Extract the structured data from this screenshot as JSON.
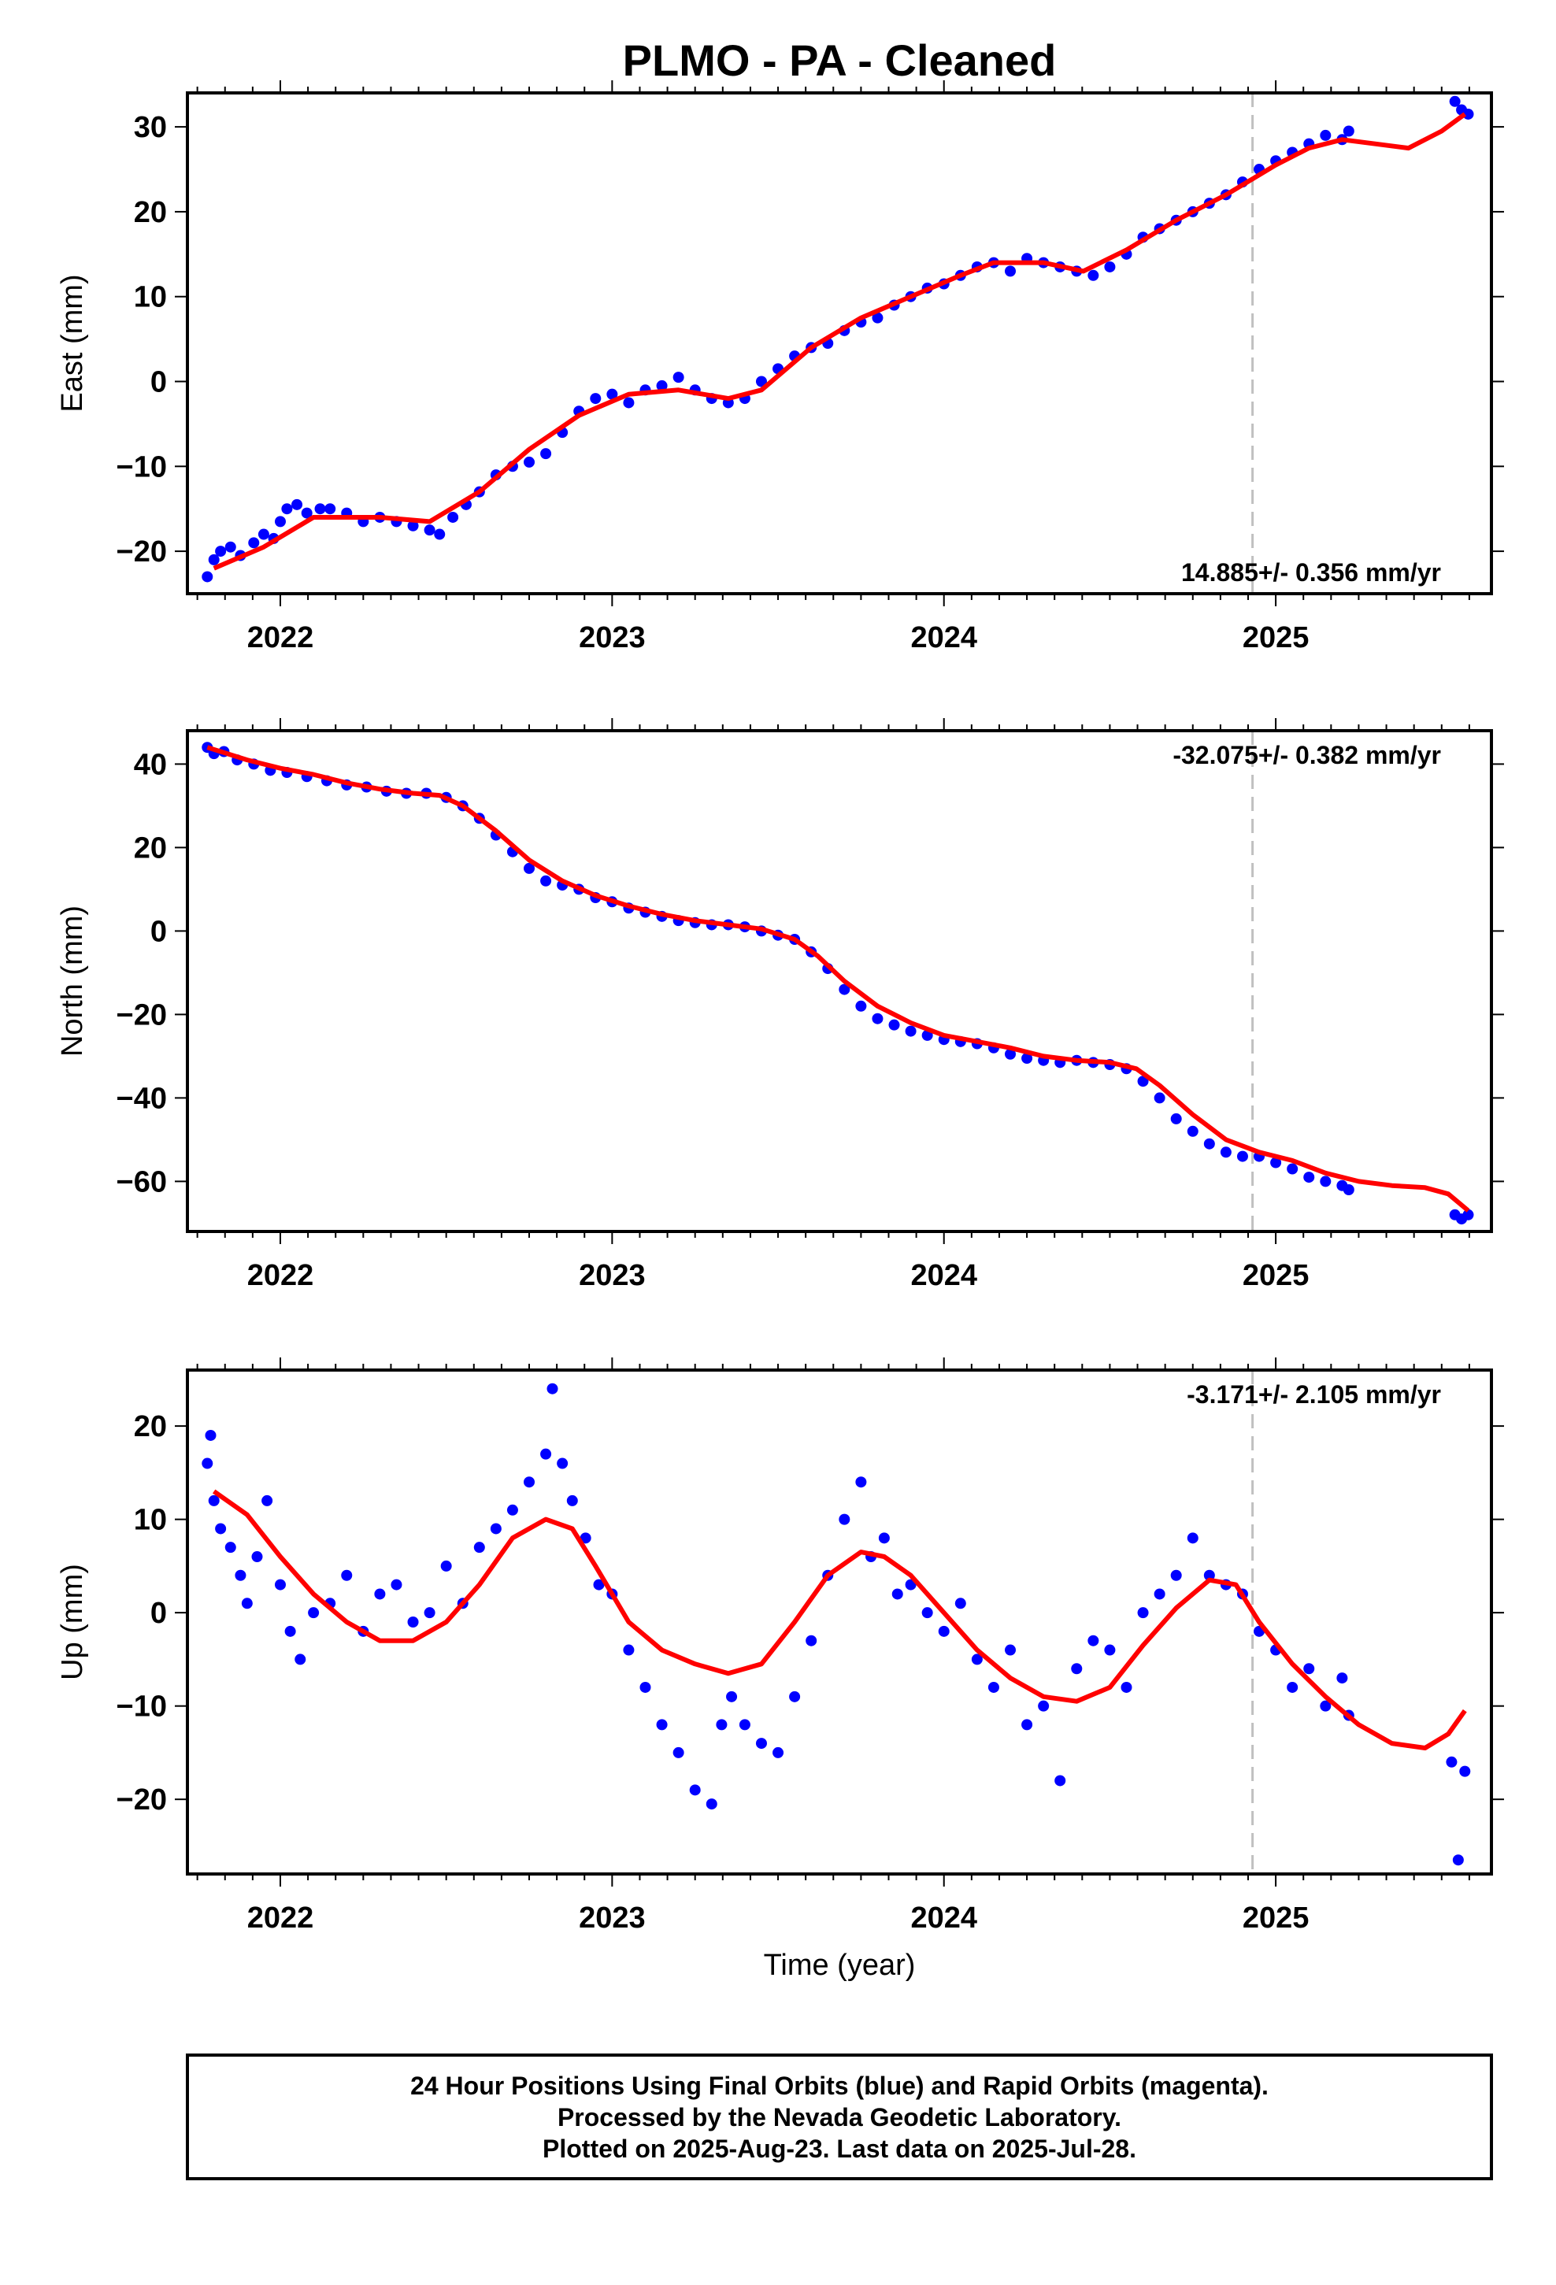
{
  "title": "PLMO  - PA - Cleaned",
  "xlabel": "Time (year)",
  "footer": {
    "line1": "24 Hour Positions Using Final Orbits (blue) and Rapid Orbits (magenta).",
    "line2": "Processed by the Nevada Geodetic Laboratory.",
    "line3": "Plotted on 2025-Aug-23. Last data on 2025-Jul-28."
  },
  "colors": {
    "points": "#0000ff",
    "model": "#ff0000",
    "break_line": "#c0c0c0",
    "frame": "#000000"
  },
  "chart_data": [
    {
      "type": "scatter",
      "title": "PLMO  - PA - Cleaned",
      "xlabel": "",
      "ylabel": "East (mm)",
      "xlim": [
        2021.72,
        2025.65
      ],
      "ylim": [
        -25,
        34
      ],
      "xticks": [
        2022,
        2023,
        2024,
        2025
      ],
      "yticks": [
        -20,
        -10,
        0,
        10,
        20,
        30
      ],
      "grid": false,
      "rate_text": "14.885+/- 0.356 mm/yr",
      "rate_position": "bottom-right",
      "break_line_x": 2024.93,
      "model_line": {
        "x": [
          2021.8,
          2021.95,
          2022.1,
          2022.3,
          2022.45,
          2022.6,
          2022.75,
          2022.9,
          2023.05,
          2023.2,
          2023.35,
          2023.45,
          2023.6,
          2023.75,
          2023.9,
          2024.05,
          2024.15,
          2024.3,
          2024.42,
          2024.55,
          2024.7,
          2024.85,
          2025.0,
          2025.1,
          2025.2,
          2025.3,
          2025.4,
          2025.5,
          2025.57
        ],
        "y": [
          -22,
          -19.5,
          -16,
          -16,
          -16.5,
          -13,
          -8,
          -4,
          -1.5,
          -1,
          -2,
          -1,
          4,
          7.5,
          10,
          12.5,
          14,
          14,
          13,
          15.5,
          19,
          22,
          25.5,
          27.5,
          28.5,
          28,
          27.5,
          29.5,
          31.5
        ]
      },
      "points": {
        "x": [
          2021.78,
          2021.8,
          2021.82,
          2021.85,
          2021.88,
          2021.92,
          2021.95,
          2021.98,
          2022.0,
          2022.02,
          2022.05,
          2022.08,
          2022.12,
          2022.15,
          2022.2,
          2022.25,
          2022.3,
          2022.35,
          2022.4,
          2022.45,
          2022.48,
          2022.52,
          2022.56,
          2022.6,
          2022.65,
          2022.7,
          2022.75,
          2022.8,
          2022.85,
          2022.9,
          2022.95,
          2023.0,
          2023.05,
          2023.1,
          2023.15,
          2023.2,
          2023.25,
          2023.3,
          2023.35,
          2023.4,
          2023.45,
          2023.5,
          2023.55,
          2023.6,
          2023.65,
          2023.7,
          2023.75,
          2023.8,
          2023.85,
          2023.9,
          2023.95,
          2024.0,
          2024.05,
          2024.1,
          2024.15,
          2024.2,
          2024.25,
          2024.3,
          2024.35,
          2024.4,
          2024.45,
          2024.5,
          2024.55,
          2024.6,
          2024.65,
          2024.7,
          2024.75,
          2024.8,
          2024.85,
          2024.9,
          2024.95,
          2025.0,
          2025.05,
          2025.1,
          2025.15,
          2025.2,
          2025.22,
          2025.54,
          2025.56,
          2025.58
        ],
        "y": [
          -23,
          -21,
          -20,
          -19.5,
          -20.5,
          -19,
          -18,
          -18.5,
          -16.5,
          -15,
          -14.5,
          -15.5,
          -15,
          -15,
          -15.5,
          -16.5,
          -16,
          -16.5,
          -17,
          -17.5,
          -18,
          -16,
          -14.5,
          -13,
          -11,
          -10,
          -9.5,
          -8.5,
          -6,
          -3.5,
          -2,
          -1.5,
          -2.5,
          -1,
          -0.5,
          0.5,
          -1,
          -2,
          -2.5,
          -2,
          0,
          1.5,
          3,
          4,
          4.5,
          6,
          7,
          7.5,
          9,
          10,
          11,
          11.5,
          12.5,
          13.5,
          14,
          13,
          14.5,
          14,
          13.5,
          13,
          12.5,
          13.5,
          15,
          17,
          18,
          19,
          20,
          21,
          22,
          23.5,
          25,
          26,
          27,
          28,
          29,
          28.5,
          29.5,
          33,
          32,
          31.5
        ]
      }
    },
    {
      "type": "scatter",
      "xlabel": "",
      "ylabel": "North (mm)",
      "xlim": [
        2021.72,
        2025.65
      ],
      "ylim": [
        -72,
        48
      ],
      "xticks": [
        2022,
        2023,
        2024,
        2025
      ],
      "yticks": [
        -60,
        -40,
        -20,
        0,
        20,
        40
      ],
      "grid": false,
      "rate_text": "-32.075+/- 0.382 mm/yr",
      "rate_position": "top-right",
      "break_line_x": 2024.93,
      "model_line": {
        "x": [
          2021.78,
          2021.9,
          2022.0,
          2022.1,
          2022.2,
          2022.3,
          2022.4,
          2022.48,
          2022.55,
          2022.65,
          2022.75,
          2022.85,
          2022.95,
          2023.05,
          2023.15,
          2023.25,
          2023.35,
          2023.45,
          2023.55,
          2023.62,
          2023.7,
          2023.8,
          2023.9,
          2024.0,
          2024.1,
          2024.2,
          2024.3,
          2024.4,
          2024.5,
          2024.58,
          2024.65,
          2024.75,
          2024.85,
          2024.95,
          2025.05,
          2025.15,
          2025.25,
          2025.35,
          2025.45,
          2025.52,
          2025.58
        ],
        "y": [
          44,
          41,
          39,
          37.5,
          35.5,
          34,
          33,
          32.5,
          30,
          24,
          17,
          12,
          8.5,
          6,
          4,
          2.5,
          1.5,
          0.5,
          -2,
          -6,
          -12,
          -18,
          -22,
          -25,
          -26.5,
          -28,
          -30,
          -31,
          -31.5,
          -33,
          -37,
          -44,
          -50,
          -53,
          -55,
          -58,
          -60,
          -61,
          -61.5,
          -63,
          -67
        ]
      },
      "points": {
        "x": [
          2021.78,
          2021.8,
          2021.83,
          2021.87,
          2021.92,
          2021.97,
          2022.02,
          2022.08,
          2022.14,
          2022.2,
          2022.26,
          2022.32,
          2022.38,
          2022.44,
          2022.5,
          2022.55,
          2022.6,
          2022.65,
          2022.7,
          2022.75,
          2022.8,
          2022.85,
          2022.9,
          2022.95,
          2023.0,
          2023.05,
          2023.1,
          2023.15,
          2023.2,
          2023.25,
          2023.3,
          2023.35,
          2023.4,
          2023.45,
          2023.5,
          2023.55,
          2023.6,
          2023.65,
          2023.7,
          2023.75,
          2023.8,
          2023.85,
          2023.9,
          2023.95,
          2024.0,
          2024.05,
          2024.1,
          2024.15,
          2024.2,
          2024.25,
          2024.3,
          2024.35,
          2024.4,
          2024.45,
          2024.5,
          2024.55,
          2024.6,
          2024.65,
          2024.7,
          2024.75,
          2024.8,
          2024.85,
          2024.9,
          2024.95,
          2025.0,
          2025.05,
          2025.1,
          2025.15,
          2025.2,
          2025.22,
          2025.54,
          2025.56,
          2025.58
        ],
        "y": [
          44,
          42.5,
          43,
          41,
          40,
          38.5,
          38,
          37,
          36,
          35,
          34.5,
          33.5,
          33,
          33,
          32,
          30,
          27,
          23,
          19,
          15,
          12,
          11,
          10,
          8,
          7,
          5.5,
          4.5,
          3.5,
          2.5,
          2,
          1.5,
          1.5,
          1,
          0,
          -1,
          -2,
          -5,
          -9,
          -14,
          -18,
          -21,
          -22.5,
          -24,
          -25,
          -26,
          -26.5,
          -27,
          -28,
          -29.5,
          -30.5,
          -31,
          -31.5,
          -31,
          -31.5,
          -32,
          -33,
          -36,
          -40,
          -45,
          -48,
          -51,
          -53,
          -54,
          -54,
          -55.5,
          -57,
          -59,
          -60,
          -61,
          -62,
          -68,
          -69,
          -68
        ]
      }
    },
    {
      "type": "scatter",
      "xlabel": "Time (year)",
      "ylabel": "Up (mm)",
      "xlim": [
        2021.72,
        2025.65
      ],
      "ylim": [
        -28,
        26
      ],
      "xticks": [
        2022,
        2023,
        2024,
        2025
      ],
      "yticks": [
        -20,
        -10,
        0,
        10,
        20
      ],
      "grid": false,
      "rate_text": "-3.171+/- 2.105 mm/yr",
      "rate_position": "top-right",
      "break_line_x": 2024.93,
      "model_line": {
        "x": [
          2021.8,
          2021.9,
          2022.0,
          2022.1,
          2022.2,
          2022.3,
          2022.4,
          2022.5,
          2022.6,
          2022.7,
          2022.8,
          2022.88,
          2022.95,
          2023.05,
          2023.15,
          2023.25,
          2023.35,
          2023.45,
          2023.55,
          2023.65,
          2023.75,
          2023.82,
          2023.9,
          2024.0,
          2024.1,
          2024.2,
          2024.3,
          2024.4,
          2024.5,
          2024.6,
          2024.7,
          2024.8,
          2024.88,
          2024.95,
          2025.05,
          2025.15,
          2025.25,
          2025.35,
          2025.45,
          2025.52,
          2025.57
        ],
        "y": [
          13,
          10.5,
          6,
          2,
          -1,
          -3,
          -3,
          -1,
          3,
          8,
          10,
          9,
          5,
          -1,
          -4,
          -5.5,
          -6.5,
          -5.5,
          -1,
          4,
          6.5,
          6,
          4,
          0,
          -4,
          -7,
          -9,
          -9.5,
          -8,
          -3.5,
          0.5,
          3.5,
          3,
          -1,
          -5.5,
          -9,
          -12,
          -14,
          -14.5,
          -13,
          -10.5
        ]
      },
      "points": {
        "x": [
          2021.78,
          2021.79,
          2021.8,
          2021.82,
          2021.85,
          2021.88,
          2021.9,
          2021.93,
          2021.96,
          2022.0,
          2022.03,
          2022.06,
          2022.1,
          2022.15,
          2022.2,
          2022.25,
          2022.3,
          2022.35,
          2022.4,
          2022.45,
          2022.5,
          2022.55,
          2022.6,
          2022.65,
          2022.7,
          2022.75,
          2022.8,
          2022.82,
          2022.85,
          2022.88,
          2022.92,
          2022.96,
          2023.0,
          2023.05,
          2023.1,
          2023.15,
          2023.2,
          2023.25,
          2023.3,
          2023.33,
          2023.36,
          2023.4,
          2023.45,
          2023.5,
          2023.55,
          2023.6,
          2023.65,
          2023.7,
          2023.75,
          2023.78,
          2023.82,
          2023.86,
          2023.9,
          2023.95,
          2024.0,
          2024.05,
          2024.1,
          2024.15,
          2024.2,
          2024.25,
          2024.3,
          2024.35,
          2024.4,
          2024.45,
          2024.5,
          2024.55,
          2024.6,
          2024.65,
          2024.7,
          2024.75,
          2024.8,
          2024.85,
          2024.9,
          2024.95,
          2025.0,
          2025.05,
          2025.1,
          2025.15,
          2025.2,
          2025.22,
          2025.53,
          2025.55,
          2025.57
        ],
        "y": [
          16,
          19,
          12,
          9,
          7,
          4,
          1,
          6,
          12,
          3,
          -2,
          -5,
          0,
          1,
          4,
          -2,
          2,
          3,
          -1,
          0,
          5,
          1,
          7,
          9,
          11,
          14,
          17,
          24,
          16,
          12,
          8,
          3,
          2,
          -4,
          -8,
          -12,
          -15,
          -19,
          -20.5,
          -12,
          -9,
          -12,
          -14,
          -15,
          -9,
          -3,
          4,
          10,
          14,
          6,
          8,
          2,
          3,
          0,
          -2,
          1,
          -5,
          -8,
          -4,
          -12,
          -10,
          -18,
          -6,
          -3,
          -4,
          -8,
          0,
          2,
          4,
          8,
          4,
          3,
          2,
          -2,
          -4,
          -8,
          -6,
          -10,
          -7,
          -11,
          -16,
          -26.5,
          -17
        ]
      }
    }
  ]
}
